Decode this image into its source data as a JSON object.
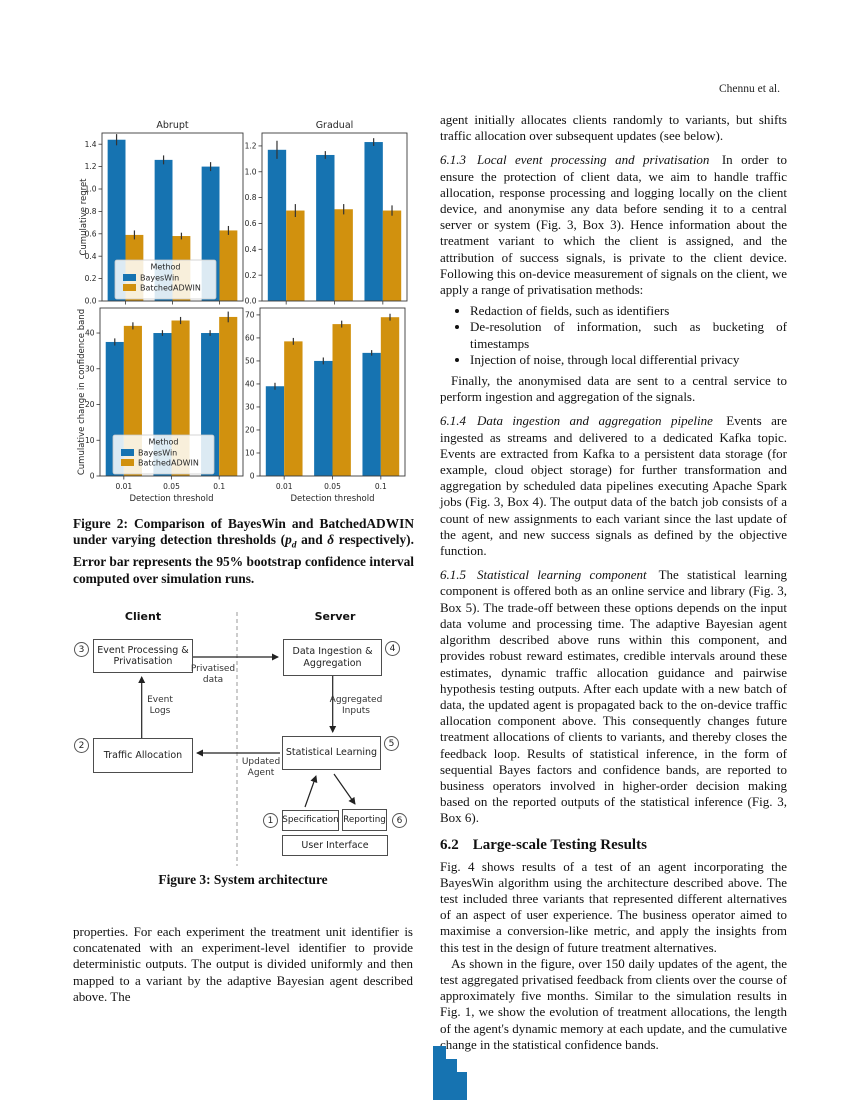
{
  "page": {
    "header_right": "Chennu et al."
  },
  "colors": {
    "blue": "#1673b1",
    "orange": "#d1910e"
  },
  "chart_data": [
    {
      "type": "bar",
      "title": "Abrupt",
      "ylabel": "Cumulative regret",
      "xlabel": "",
      "categories": [
        "0.01",
        "0.05",
        "0.1"
      ],
      "series": [
        {
          "name": "BayesWin",
          "color": "#1673b1",
          "values": [
            1.44,
            1.26,
            1.2
          ],
          "errors": [
            0.05,
            0.04,
            0.04
          ]
        },
        {
          "name": "BatchedADWIN",
          "color": "#d1910e",
          "values": [
            0.59,
            0.58,
            0.63
          ],
          "errors": [
            0.04,
            0.03,
            0.04
          ]
        }
      ],
      "ylim": [
        0,
        1.5
      ],
      "yticks": [
        "0.0",
        "0.2",
        "0.4",
        "0.6",
        "0.8",
        "1.0",
        "1.2",
        "1.4"
      ],
      "show_xticklabels": false,
      "legend": true,
      "legend_title": "Method",
      "legend_position": "lower left",
      "grid": false
    },
    {
      "type": "bar",
      "title": "Gradual",
      "ylabel": "",
      "xlabel": "",
      "categories": [
        "0.01",
        "0.05",
        "0.1"
      ],
      "series": [
        {
          "name": "BayesWin",
          "color": "#1673b1",
          "values": [
            1.17,
            1.13,
            1.23
          ],
          "errors": [
            0.07,
            0.03,
            0.03
          ]
        },
        {
          "name": "BatchedADWIN",
          "color": "#d1910e",
          "values": [
            0.7,
            0.71,
            0.7
          ],
          "errors": [
            0.05,
            0.04,
            0.04
          ]
        }
      ],
      "ylim": [
        0,
        1.3
      ],
      "yticks": [
        "0.0",
        "0.2",
        "0.4",
        "0.6",
        "0.8",
        "1.0",
        "1.2"
      ],
      "show_xticklabels": false,
      "legend": false,
      "grid": false
    },
    {
      "type": "bar",
      "title": "",
      "ylabel": "Cumulative change in confidence band",
      "xlabel": "Detection threshold",
      "categories": [
        "0.01",
        "0.05",
        "0.1"
      ],
      "series": [
        {
          "name": "BayesWin",
          "color": "#1673b1",
          "values": [
            37.5,
            40,
            40
          ],
          "errors": [
            1.0,
            0.8,
            0.8
          ]
        },
        {
          "name": "BatchedADWIN",
          "color": "#d1910e",
          "values": [
            42,
            43.5,
            44.5
          ],
          "errors": [
            1.0,
            1.0,
            1.5
          ]
        }
      ],
      "ylim": [
        0,
        47
      ],
      "yticks": [
        "0",
        "10",
        "20",
        "30",
        "40"
      ],
      "show_xticklabels": true,
      "legend": true,
      "legend_title": "Method",
      "legend_position": "lower left",
      "grid": false
    },
    {
      "type": "bar",
      "title": "",
      "ylabel": "",
      "xlabel": "Detection threshold",
      "categories": [
        "0.01",
        "0.05",
        "0.1"
      ],
      "series": [
        {
          "name": "BayesWin",
          "color": "#1673b1",
          "values": [
            39,
            50,
            53.5
          ],
          "errors": [
            1.5,
            1.5,
            1.2
          ]
        },
        {
          "name": "BatchedADWIN",
          "color": "#d1910e",
          "values": [
            58.5,
            66,
            69
          ],
          "errors": [
            1.5,
            1.5,
            1.5
          ]
        }
      ],
      "ylim": [
        0,
        73
      ],
      "yticks": [
        "0",
        "10",
        "20",
        "30",
        "40",
        "50",
        "60",
        "70"
      ],
      "show_xticklabels": true,
      "legend": false,
      "grid": false
    }
  ],
  "figure2": {
    "caption_parts": {
      "a": "Figure 2: Comparison of BayesWin and BatchedADWIN under varying detection thresholds (",
      "p": "p",
      "d": "d",
      "b": " and ",
      "delta": "δ",
      "c": " respectively). Error bar represents the 95% bootstrap confidence interval computed over simulation runs."
    }
  },
  "figure3": {
    "client_label": "Client",
    "server_label": "Server",
    "boxes": {
      "event": "Event Processing & Privatisation",
      "ingestion": "Data Ingestion & Aggregation",
      "traffic": "Traffic Allocation",
      "learning": "Statistical Learning",
      "spec": "Specification",
      "reporting": "Reporting",
      "ui": "User Interface"
    },
    "badges": {
      "event": "3",
      "ingestion": "4",
      "traffic": "2",
      "learning": "5",
      "spec": "1",
      "reporting": "6"
    },
    "edge_labels": {
      "privatised": "Privatised data",
      "logs": "Event Logs",
      "aggregated": "Aggregated Inputs",
      "updated": "Updated Agent"
    },
    "caption": "Figure 3: System architecture"
  },
  "left_column": {
    "paragraph": "properties. For each experiment the treatment unit identifier is concatenated with an experiment-level identifier to provide deterministic outputs. The output is divided uniformly and then mapped to a variant by the adaptive Bayesian agent described above. The"
  },
  "right_column": {
    "p0": "agent initially allocates clients randomly to variants, but shifts traffic allocation over subsequent updates (see below).",
    "s613": {
      "num": "6.1.3",
      "title": "Local event processing and privatisation",
      "text": "In order to ensure the protection of client data, we aim to handle traffic allocation, response processing and logging locally on the client device, and anonymise any data before sending it to a central server or system (Fig. 3, Box 3). Hence information about the treatment variant to which the client is assigned, and the attribution of success signals, is private to the client device. Following this on-device measurement of signals on the client, we apply a range of privatisation methods:"
    },
    "bullets": [
      "Redaction of fields, such as identifiers",
      "De-resolution of information, such as bucketing of timestamps",
      "Injection of noise, through local differential privacy"
    ],
    "p1": "Finally, the anonymised data are sent to a central service to perform ingestion and aggregation of the signals.",
    "s614": {
      "num": "6.1.4",
      "title": "Data ingestion and aggregation pipeline",
      "text": "Events are ingested as streams and delivered to a dedicated Kafka topic. Events are extracted from Kafka to a persistent data storage (for example, cloud object storage) for further transformation and aggregation by scheduled data pipelines executing Apache Spark jobs (Fig. 3, Box 4). The output data of the batch job consists of a count of new assignments to each variant since the last update of the agent, and new success signals as defined by the objective function."
    },
    "s615": {
      "num": "6.1.5",
      "title": "Statistical learning component",
      "text": "The statistical learning component is offered both as an online service and library (Fig. 3, Box 5). The trade-off between these options depends on the input data volume and processing time. The adaptive Bayesian agent algorithm described above runs within this component, and provides robust reward estimates, credible intervals around these estimates, dynamic traffic allocation guidance and pairwise hypothesis testing outputs. After each update with a new batch of data, the updated agent is propagated back to the on-device traffic allocation component above. This consequently changes future treatment allocations of clients to variants, and thereby closes the feedback loop. Results of statistical inference, in the form of sequential Bayes factors and confidence bands, are reported to business operators involved in higher-order decision making based on the reported outputs of the statistical inference (Fig. 3, Box 6)."
    },
    "s62": {
      "num": "6.2",
      "title": "Large-scale Testing Results"
    },
    "p2": "Fig. 4 shows results of a test of an agent incorporating the BayesWin algorithm using the architecture described above. The test included three variants that represented different alternatives of an aspect of user experience. The business operator aimed to maximise a conversion-like metric, and apply the insights from this test in the design of future treatment alternatives.",
    "p3": "As shown in the figure, over 150 daily updates of the agent, the test aggregated privatised feedback from clients over the course of approximately five months. Similar to the simulation results in Fig. 1, we show the evolution of treatment allocations, the length of the agent's dynamic memory at each update, and the cumulative change in the statistical confidence bands."
  },
  "page_bottom_fragment": {
    "color": "#1673b1",
    "note": "top of next figure cropped at page bottom"
  }
}
